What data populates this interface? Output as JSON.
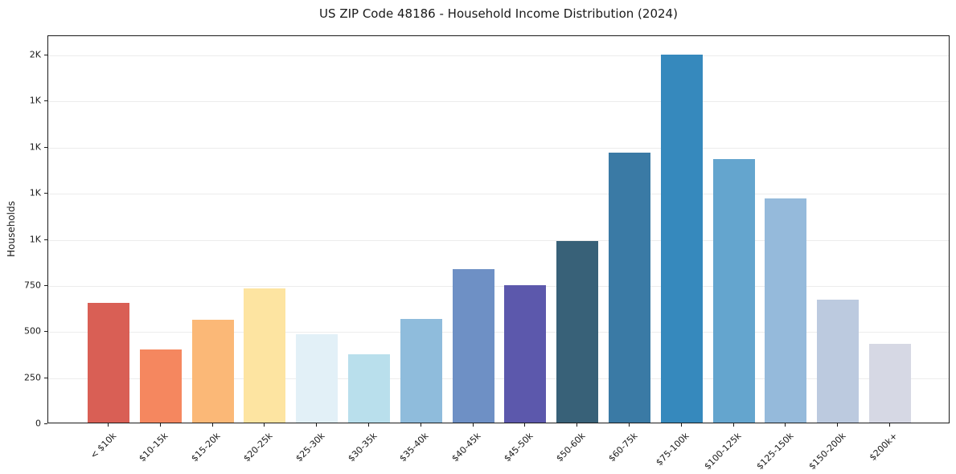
{
  "chart_data": {
    "type": "bar",
    "title": "US ZIP Code 48186 - Household Income Distribution (2024)",
    "xlabel": "",
    "ylabel": "Households",
    "ylim": [
      0,
      2105
    ],
    "grid": "horizontal",
    "legend": "none",
    "categories": [
      "< $10k",
      "$10-15k",
      "$15-20k",
      "$20-25k",
      "$25-30k",
      "$30-35k",
      "$35-40k",
      "$40-45k",
      "$45-50k",
      "$50-60k",
      "$60-75k",
      "$75-100k",
      "$100-125k",
      "$125-150k",
      "$150-200k",
      "$200k+"
    ],
    "values": [
      650,
      398,
      558,
      730,
      480,
      370,
      563,
      832,
      744,
      985,
      1464,
      1995,
      1430,
      1216,
      666,
      428
    ],
    "bar_colors": [
      "#d95f55",
      "#f5875f",
      "#fbb877",
      "#fde4a1",
      "#e2f0f7",
      "#b9dfec",
      "#8fbcdc",
      "#6e90c5",
      "#5c58ac",
      "#386178",
      "#3a7aa5",
      "#3689bd",
      "#64a5ce",
      "#95badb",
      "#bccadf",
      "#d6d8e4"
    ],
    "yticks": [
      {
        "value": 0,
        "label": "0"
      },
      {
        "value": 250,
        "label": "250"
      },
      {
        "value": 500,
        "label": "500"
      },
      {
        "value": 750,
        "label": "750"
      },
      {
        "value": 1000,
        "label": "1K"
      },
      {
        "value": 1250,
        "label": "1K"
      },
      {
        "value": 1500,
        "label": "1K"
      },
      {
        "value": 1750,
        "label": "1K"
      },
      {
        "value": 2000,
        "label": "2K"
      }
    ]
  },
  "colors": {
    "background": "#ffffff",
    "spine": "#1a1a1a",
    "gridline": "#ececec",
    "text": "#1a1a1a"
  }
}
